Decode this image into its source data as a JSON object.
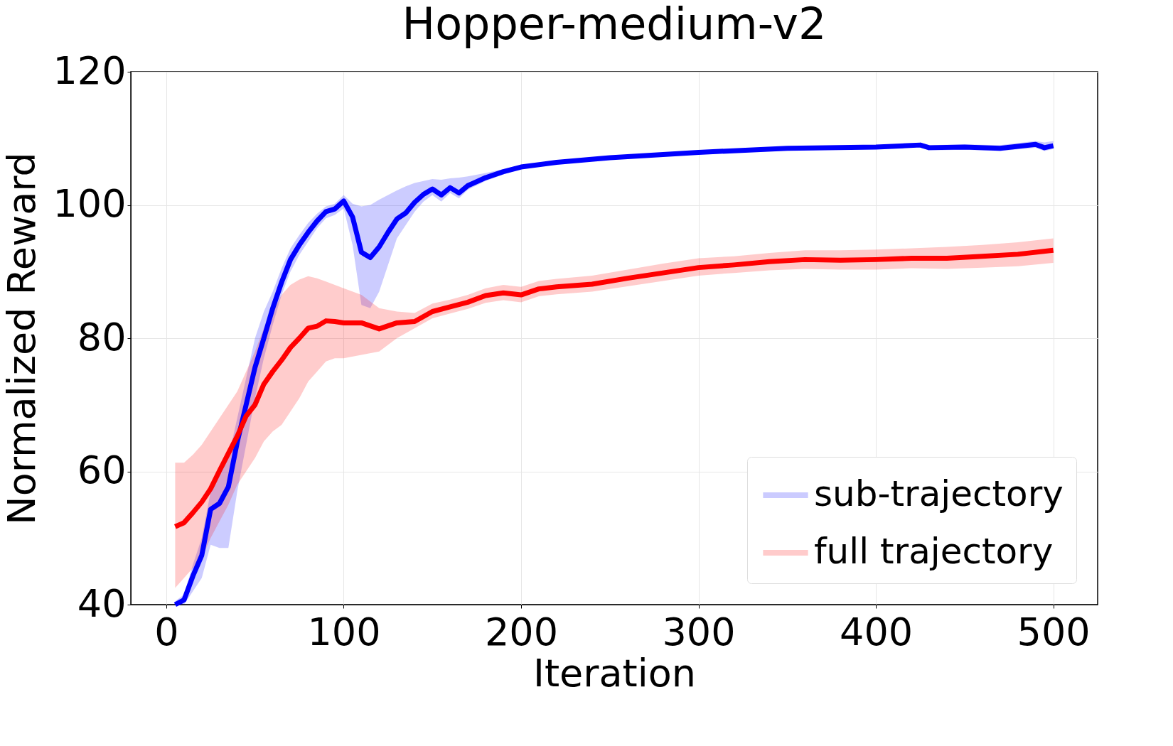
{
  "chart_data": {
    "type": "line",
    "title": "Hopper-medium-v2",
    "xlabel": "Iteration",
    "ylabel": "Normalized Reward",
    "xlim": [
      -20,
      525
    ],
    "ylim": [
      40,
      120
    ],
    "xticks": [
      0,
      100,
      200,
      300,
      400,
      500
    ],
    "yticks": [
      40,
      60,
      80,
      100,
      120
    ],
    "grid": true,
    "legend": "bottom right",
    "series": [
      {
        "name": "sub-trajectory",
        "color": "#0000ff",
        "x": [
          5,
          10,
          15,
          20,
          25,
          30,
          35,
          40,
          45,
          50,
          55,
          60,
          65,
          70,
          75,
          80,
          85,
          90,
          95,
          100,
          105,
          110,
          115,
          120,
          125,
          130,
          135,
          140,
          145,
          150,
          155,
          160,
          165,
          170,
          180,
          190,
          200,
          220,
          250,
          300,
          350,
          400,
          425,
          430,
          450,
          470,
          490,
          495,
          500
        ],
        "values": [
          40,
          40.7,
          44.3,
          47.4,
          54.3,
          55.2,
          57.7,
          64.4,
          70,
          75.6,
          80,
          84.5,
          88.4,
          91.8,
          94,
          95.9,
          97.6,
          99,
          99.4,
          100.6,
          98.2,
          92.9,
          92.1,
          93.7,
          95.9,
          97.9,
          98.8,
          100.4,
          101.6,
          102.4,
          101.5,
          102.6,
          101.8,
          102.9,
          104.1,
          105,
          105.7,
          106.4,
          107.1,
          107.9,
          108.5,
          108.7,
          109,
          108.6,
          108.7,
          108.5,
          109.1,
          108.6,
          108.9
        ],
        "lower": [
          40,
          40,
          42,
          44,
          49,
          48.5,
          48.5,
          57,
          64,
          71,
          77,
          82,
          86.5,
          90,
          92.5,
          94.5,
          96.5,
          98,
          98.5,
          99.5,
          94,
          85,
          84.5,
          87,
          91,
          95,
          97,
          99,
          100.5,
          101.5,
          100.5,
          101.8,
          101,
          102.3,
          103.6,
          104.6,
          105.4,
          106.1,
          106.8,
          107.6,
          108.2,
          108.4,
          108.7,
          108.2,
          108.3,
          108.1,
          108.6,
          108.1,
          108.4
        ],
        "upper": [
          40.5,
          41.5,
          46,
          50,
          57,
          60,
          62,
          68,
          74,
          80,
          84,
          87,
          90.5,
          93.5,
          95.5,
          97.3,
          98.7,
          99.8,
          100.2,
          101.5,
          100.2,
          99.8,
          100,
          100.8,
          101.5,
          102.2,
          102.8,
          103.3,
          103.6,
          103.9,
          103.8,
          104,
          104.1,
          104.3,
          104.8,
          105.4,
          106,
          106.7,
          107.4,
          108.2,
          108.8,
          109,
          109.3,
          109,
          109.1,
          109,
          109.6,
          109.4,
          109.6
        ]
      },
      {
        "name": "full trajectory",
        "color": "#ff0000",
        "x": [
          5,
          10,
          15,
          20,
          25,
          30,
          35,
          40,
          45,
          50,
          55,
          60,
          65,
          70,
          75,
          80,
          85,
          90,
          95,
          100,
          110,
          120,
          130,
          140,
          150,
          160,
          170,
          180,
          190,
          200,
          210,
          220,
          240,
          260,
          280,
          300,
          320,
          340,
          360,
          380,
          400,
          420,
          440,
          460,
          480,
          500
        ],
        "values": [
          51.7,
          52.3,
          53.8,
          55.4,
          57.4,
          60.1,
          62.7,
          65.3,
          68.3,
          70,
          73.1,
          75,
          76.7,
          78.6,
          80,
          81.5,
          81.8,
          82.6,
          82.5,
          82.3,
          82.3,
          81.4,
          82.3,
          82.5,
          84,
          84.7,
          85.4,
          86.4,
          86.8,
          86.5,
          87.4,
          87.7,
          88.1,
          89,
          89.8,
          90.6,
          91,
          91.5,
          91.8,
          91.7,
          91.8,
          92,
          92,
          92.3,
          92.6,
          93.2
        ],
        "lower": [
          42.5,
          44,
          45.5,
          47,
          50,
          52.5,
          55,
          58,
          60,
          62,
          64.5,
          66,
          67,
          69,
          71,
          73.5,
          75,
          76.5,
          77,
          77,
          77.5,
          78,
          80,
          81.5,
          83,
          83.7,
          84.4,
          85.3,
          85.7,
          85.4,
          86.3,
          86.6,
          87,
          87.8,
          88.6,
          89.4,
          89.8,
          90.2,
          90.4,
          90.3,
          90.3,
          90.5,
          90.4,
          90.6,
          90.8,
          91.3
        ],
        "upper": [
          61.3,
          61.3,
          62.5,
          64,
          66,
          68,
          70,
          72,
          75,
          78,
          81.5,
          84,
          86.5,
          88,
          88.8,
          89.3,
          89,
          88.5,
          88,
          87.5,
          86.5,
          84.5,
          84,
          83.8,
          85.2,
          85.8,
          86.5,
          87.5,
          88,
          87.7,
          88.6,
          88.9,
          89.4,
          90.3,
          91.2,
          92,
          92.3,
          92.8,
          93.2,
          93.2,
          93.3,
          93.5,
          93.7,
          94,
          94.4,
          95
        ]
      }
    ]
  }
}
